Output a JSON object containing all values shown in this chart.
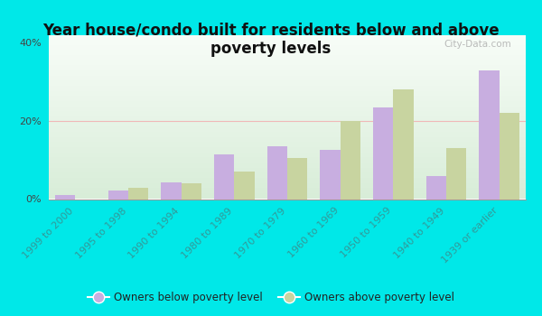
{
  "title": "Year house/condo built for residents below and above\npoverty levels",
  "categories": [
    "1999 to 2000",
    "1995 to 1998",
    "1990 to 1994",
    "1980 to 1989",
    "1970 to 1979",
    "1960 to 1969",
    "1950 to 1959",
    "1940 to 1949",
    "1939 or earlier"
  ],
  "below_poverty": [
    1.0,
    2.2,
    4.2,
    11.5,
    13.5,
    12.5,
    23.5,
    6.0,
    33.0
  ],
  "above_poverty": [
    0.0,
    3.0,
    4.0,
    7.0,
    10.5,
    20.0,
    28.0,
    13.0,
    22.0
  ],
  "below_color": "#c8aee0",
  "above_color": "#c8d4a0",
  "background_outer": "#00e8e8",
  "ylim": [
    0,
    42
  ],
  "yticks": [
    0,
    20,
    40
  ],
  "ytick_labels": [
    "0%",
    "20%",
    "40%"
  ],
  "grid_color": "#f0b8b8",
  "bar_width": 0.38,
  "legend_below_label": "Owners below poverty level",
  "legend_above_label": "Owners above poverty level",
  "watermark": "City-Data.com",
  "title_fontsize": 12,
  "tick_fontsize": 8,
  "axis_label_color": "#339999"
}
